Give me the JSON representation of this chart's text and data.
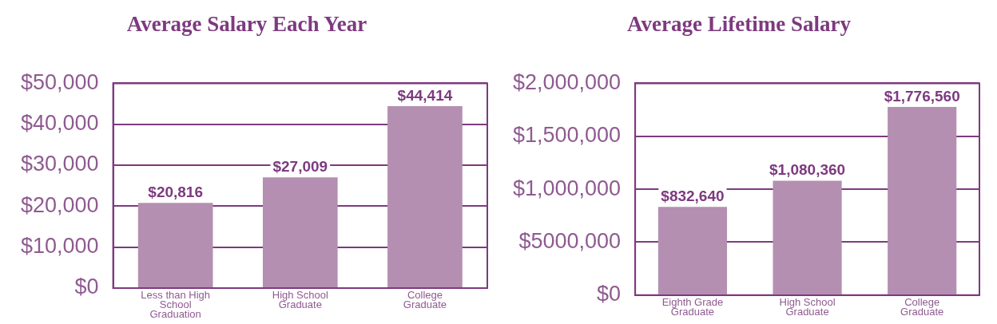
{
  "chart_data": [
    {
      "type": "bar",
      "title": "Average Salary Each Year",
      "categories": [
        "Less than High School Graduation",
        "High School Graduate",
        "College Graduate"
      ],
      "values": [
        20816,
        27009,
        44414
      ],
      "value_labels": [
        "$20,816",
        "$27,009",
        "$44,414"
      ],
      "color": "#b48fb1",
      "ylim": [
        0,
        50000
      ],
      "yticks": [
        {
          "value": 0,
          "label": "$0"
        },
        {
          "value": 10000,
          "label": "$10,000"
        },
        {
          "value": 20000,
          "label": "$20,000"
        },
        {
          "value": 30000,
          "label": "$30,000"
        },
        {
          "value": 40000,
          "label": "$40,000"
        },
        {
          "value": 50000,
          "label": "$50,000"
        }
      ],
      "grid": "y",
      "legend": false
    },
    {
      "type": "bar",
      "title": "Average Lifetime Salary",
      "categories": [
        "Eighth Grade Graduate",
        "High School Graduate",
        "College Graduate"
      ],
      "values": [
        832640,
        1080360,
        1776560
      ],
      "value_labels": [
        "$832,640",
        "$1,080,360",
        "$1,776,560"
      ],
      "color": "#b48fb1",
      "ylim": [
        0,
        2000000
      ],
      "yticks": [
        {
          "value": 0,
          "label": "$0"
        },
        {
          "value": 500000,
          "label": "$5000,000"
        },
        {
          "value": 1000000,
          "label": "$1,000,000"
        },
        {
          "value": 1500000,
          "label": "$1,500,000"
        },
        {
          "value": 2000000,
          "label": "$2,000,000"
        }
      ],
      "grid": "y",
      "legend": false
    }
  ]
}
